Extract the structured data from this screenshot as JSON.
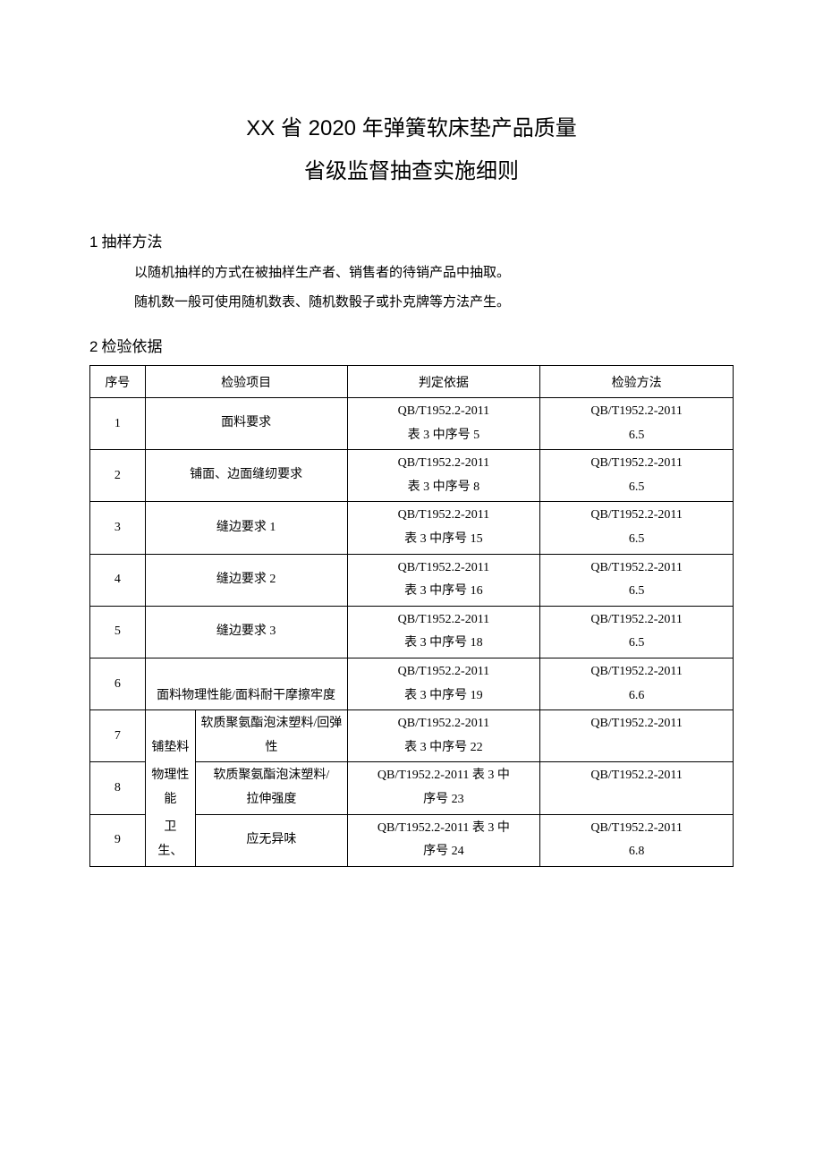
{
  "title": {
    "line1": "XX 省 2020 年弹簧软床垫产品质量",
    "line2": "省级监督抽查实施细则"
  },
  "section1": {
    "num": "1",
    "heading": "抽样方法",
    "para1": "以随机抽样的方式在被抽样生产者、销售者的待销产品中抽取。",
    "para2": "随机数一般可使用随机数表、随机数骰子或扑克牌等方法产生。"
  },
  "section2": {
    "num": "2",
    "heading": "检验依据"
  },
  "table": {
    "headers": {
      "seq": "序号",
      "item": "检验项目",
      "basis": "判定依据",
      "method": "检验方法"
    },
    "rows": [
      {
        "seq": "1",
        "item": "面料要求",
        "item_span": 2,
        "basis_l1": "QB/T1952.2-2011",
        "basis_l2": "表 3 中序号 5",
        "method_l1": "QB/T1952.2-2011",
        "method_l2": "6.5"
      },
      {
        "seq": "2",
        "item": "铺面、边面缝纫要求",
        "item_span": 2,
        "basis_l1": "QB/T1952.2-2011",
        "basis_l2": "表 3 中序号 8",
        "method_l1": "QB/T1952.2-2011",
        "method_l2": "6.5"
      },
      {
        "seq": "3",
        "item": "缝边要求 1",
        "item_span": 2,
        "basis_l1": "QB/T1952.2-2011",
        "basis_l2": "表 3 中序号 15",
        "method_l1": "QB/T1952.2-2011",
        "method_l2": "6.5"
      },
      {
        "seq": "4",
        "item": "缝边要求 2",
        "item_span": 2,
        "basis_l1": "QB/T1952.2-2011",
        "basis_l2": "表 3 中序号 16",
        "method_l1": "QB/T1952.2-2011",
        "method_l2": "6.5"
      },
      {
        "seq": "5",
        "item": "缝边要求 3",
        "item_span": 2,
        "basis_l1": "QB/T1952.2-2011",
        "basis_l2": "表 3 中序号 18",
        "method_l1": "QB/T1952.2-2011",
        "method_l2": "6.5"
      },
      {
        "seq": "6",
        "item": "面料物理性能/面料耐干摩擦牢度",
        "item_span": 2,
        "basis_l1": "QB/T1952.2-2011",
        "basis_l2": "表 3 中序号 19",
        "method_l1": "QB/T1952.2-2011",
        "method_l2": "6.6"
      },
      {
        "seq": "7",
        "sub_a_l1": "铺垫料",
        "sub_b_l1": "软质聚氨酯泡沫塑料/回弹",
        "sub_b_l2": "性",
        "basis_l1": "QB/T1952.2-2011",
        "basis_l2": "表 3 中序号 22",
        "method_l1": "QB/T1952.2-2011",
        "method_l2": ""
      },
      {
        "seq": "8",
        "sub_a_l1": "物理性",
        "sub_a_l2": "能",
        "sub_b_l1": "软质聚氨酯泡沫塑料/",
        "sub_b_l2": "拉伸强度",
        "basis_l1": "QB/T1952.2-2011 表 3 中",
        "basis_l2": "序号 23",
        "method_l1": "QB/T1952.2-2011",
        "method_l2": ""
      },
      {
        "seq": "9",
        "sub_a_l1": "卫",
        "sub_a_l2": "生、",
        "sub_b_l1": "应无异味",
        "basis_l1": "QB/T1952.2-2011 表 3 中",
        "basis_l2": "序号 24",
        "method_l1": "QB/T1952.2-2011",
        "method_l2": "6.8"
      }
    ]
  }
}
